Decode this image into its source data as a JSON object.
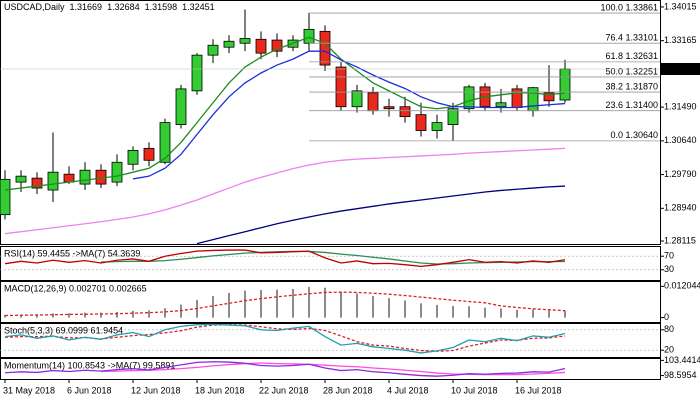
{
  "chart_data": [
    {
      "type": "candlestick",
      "title": "USDCAD,Daily",
      "categories": [
        "31 May 2018",
        null,
        null,
        null,
        "6 Jun 2018",
        null,
        null,
        null,
        "12 Jun 2018",
        null,
        null,
        null,
        "18 Jun 2018",
        null,
        null,
        null,
        "22 Jun 2018",
        null,
        null,
        null,
        "28 Jun 2018",
        null,
        null,
        null,
        "4 Jul 2018",
        null,
        null,
        null,
        "10 Jul 2018",
        null,
        null,
        null,
        "16 Jul 2018",
        null,
        null,
        null
      ],
      "open": [
        1.2878,
        1.296,
        1.297,
        1.294,
        1.298,
        1.2955,
        1.299,
        1.296,
        1.3005,
        1.3045,
        1.301,
        1.3105,
        1.319,
        1.328,
        1.33,
        1.331,
        1.332,
        1.3318,
        1.33,
        1.331,
        1.334,
        1.325,
        1.315,
        1.3185,
        1.315,
        1.315,
        1.313,
        1.309,
        1.3105,
        1.3145,
        1.32,
        1.315,
        1.3195,
        1.314,
        1.3185,
        1.31669
      ],
      "high": [
        1.299,
        1.299,
        1.2985,
        1.3085,
        1.3,
        1.301,
        1.3005,
        1.303,
        1.305,
        1.306,
        1.312,
        1.3205,
        1.3285,
        1.332,
        1.333,
        1.3395,
        1.334,
        1.3335,
        1.333,
        1.33861,
        1.3355,
        1.3262,
        1.3205,
        1.32,
        1.317,
        1.3175,
        1.316,
        1.313,
        1.316,
        1.3205,
        1.321,
        1.3195,
        1.3205,
        1.32,
        1.3255,
        1.32684
      ],
      "low": [
        1.2866,
        1.2935,
        1.293,
        1.291,
        1.2955,
        1.294,
        1.2945,
        1.295,
        1.299,
        1.3,
        1.3005,
        1.3095,
        1.318,
        1.326,
        1.3285,
        1.329,
        1.327,
        1.3275,
        1.329,
        1.329,
        1.324,
        1.314,
        1.3135,
        1.313,
        1.3125,
        1.311,
        1.3075,
        1.307,
        1.3064,
        1.3135,
        1.314,
        1.3135,
        1.314,
        1.3125,
        1.315,
        1.31598
      ],
      "close": [
        1.2967,
        1.2975,
        1.2945,
        1.2985,
        1.296,
        1.299,
        1.2955,
        1.301,
        1.304,
        1.3015,
        1.311,
        1.3195,
        1.328,
        1.3305,
        1.3315,
        1.3322,
        1.3285,
        1.329,
        1.3318,
        1.3345,
        1.3255,
        1.315,
        1.319,
        1.314,
        1.3145,
        1.3125,
        1.309,
        1.311,
        1.3145,
        1.32,
        1.315,
        1.316,
        1.3148,
        1.3198,
        1.3165,
        1.32451
      ],
      "up_color": "#33cc33",
      "down_color": "#e8291c",
      "series": [
        {
          "color": "#1e8c1e",
          "values": [
            1.294,
            1.2945,
            1.295,
            1.2955,
            1.296,
            1.2965,
            1.297,
            1.2975,
            1.2985,
            1.2995,
            1.302,
            1.306,
            1.311,
            1.316,
            1.321,
            1.325,
            1.3275,
            1.3295,
            1.331,
            1.3325,
            1.331,
            1.327,
            1.324,
            1.321,
            1.319,
            1.317,
            1.315,
            1.3145,
            1.315,
            1.3165,
            1.3175,
            1.318,
            1.3185,
            1.3185,
            1.318,
            1.3185
          ]
        },
        {
          "color": "#1a2ee0",
          "values": [
            null,
            null,
            null,
            null,
            null,
            null,
            null,
            null,
            1.2968,
            1.2975,
            1.2995,
            1.303,
            1.308,
            1.313,
            1.3175,
            1.321,
            1.3235,
            1.3255,
            1.327,
            1.329,
            1.329,
            1.3268,
            1.325,
            1.323,
            1.3212,
            1.3196,
            1.3175,
            1.316,
            1.315,
            1.315,
            1.3148,
            1.3148,
            1.3148,
            1.3152,
            1.3155,
            1.3158
          ]
        },
        {
          "color": "#ee82ee",
          "values": [
            1.283,
            1.2835,
            1.284,
            1.2845,
            1.285,
            1.2855,
            1.286,
            1.2866,
            1.2872,
            1.288,
            1.289,
            1.2902,
            1.2915,
            1.293,
            1.2945,
            1.296,
            1.2972,
            1.2983,
            1.2994,
            1.3003,
            1.301,
            1.3015,
            1.3018,
            1.302,
            1.3022,
            1.3024,
            1.3026,
            1.3028,
            1.303,
            1.3033,
            1.3035,
            1.3037,
            1.3039,
            1.3041,
            1.3043,
            1.3045
          ]
        },
        {
          "color": "#000080",
          "values": [
            null,
            null,
            null,
            null,
            null,
            null,
            null,
            null,
            null,
            null,
            null,
            null,
            1.2805,
            1.2815,
            1.2825,
            1.2835,
            1.2845,
            1.2855,
            1.2864,
            1.2872,
            1.288,
            1.2887,
            1.2893,
            1.2899,
            1.2905,
            1.291,
            1.2915,
            1.292,
            1.2925,
            1.293,
            1.2935,
            1.2939,
            1.2942,
            1.2945,
            1.2948,
            1.295
          ]
        }
      ],
      "levels_start": 19,
      "levels": [
        {
          "value": 1.33861,
          "label": "100.0 1.33861"
        },
        {
          "value": 1.33101,
          "label": "76.4 1.33101"
        },
        {
          "value": 1.32631,
          "label": "61.8 1.32631"
        },
        {
          "value": 1.32251,
          "label": "50.0 1.32251"
        },
        {
          "value": 1.3187,
          "label": "38.2 1.31870"
        },
        {
          "value": 1.314,
          "label": "23.6 1.31400"
        },
        {
          "value": 1.3064,
          "label": "0.0 1.30640"
        }
      ],
      "ylim": [
        1.2804,
        1.3419
      ],
      "yticks": [
        1.34015,
        1.33165,
        {
          "value": 1.3149,
          "label": "1.31490"
        },
        {
          "value": 1.3064,
          "label": "1.30640"
        },
        {
          "value": 1.2979,
          "label": "1.29790"
        },
        {
          "value": 1.2894,
          "label": "1.28940"
        },
        1.28115
      ]
    },
    {
      "type": "line",
      "title": "RSI(14) 59.4455 ->MA(7) 54.3639",
      "ylim": [
        0,
        100
      ],
      "yticks": [
        30,
        70
      ],
      "grid": true,
      "series": [
        {
          "color": "#2e8b57",
          "values": [
            null,
            null,
            null,
            null,
            null,
            null,
            53,
            54,
            55,
            55,
            57,
            61,
            66,
            71,
            75,
            79,
            81,
            83,
            84,
            84,
            81,
            76,
            72,
            67,
            62,
            56,
            50,
            47,
            48,
            50,
            51,
            52,
            53,
            54,
            54,
            54.3639
          ]
        },
        {
          "color": "#c00000",
          "values": [
            48,
            55,
            50,
            58,
            52,
            57,
            50,
            58,
            62,
            55,
            70,
            78,
            85,
            87,
            88,
            88,
            80,
            81,
            83,
            85,
            65,
            50,
            56,
            48,
            49,
            45,
            40,
            45,
            52,
            60,
            52,
            54,
            50,
            56,
            52,
            59.4455
          ]
        }
      ]
    },
    {
      "type": "macd",
      "title": "MACD(12,26,9) 0.002701 0.002665",
      "ylim": [
        -0.0017,
        0.0141
      ],
      "yticks": [
        0.012044,
        0
      ],
      "color": "#8c8c8c",
      "values": [
        0.001,
        0.0012,
        0.0013,
        0.0016,
        0.0017,
        0.0019,
        0.0019,
        0.0022,
        0.0026,
        0.0028,
        0.0036,
        0.005,
        0.0068,
        0.0083,
        0.0095,
        0.0104,
        0.0106,
        0.0108,
        0.011,
        0.0118,
        0.0115,
        0.01,
        0.0093,
        0.0083,
        0.0075,
        0.0066,
        0.0055,
        0.0049,
        0.0045,
        0.0044,
        0.0038,
        0.0035,
        0.003,
        0.0031,
        0.0028,
        0.002701
      ],
      "series": [
        {
          "color": "#e02020",
          "dash": true,
          "values": [
            0.0008,
            0.0009,
            0.001,
            0.0011,
            0.0012,
            0.0013,
            0.0014,
            0.0015,
            0.0017,
            0.0019,
            0.0022,
            0.0027,
            0.0035,
            0.0045,
            0.0055,
            0.0065,
            0.0073,
            0.008,
            0.0086,
            0.0092,
            0.0097,
            0.0098,
            0.0097,
            0.0094,
            0.009,
            0.0085,
            0.0079,
            0.0073,
            0.0067,
            0.0062,
            0.0057,
            0.0045,
            0.0039,
            0.0034,
            0.003,
            0.002665
          ]
        }
      ]
    },
    {
      "type": "line",
      "title": "Stoch(5,3,3) 69.0999 61.9454",
      "ylim": [
        0,
        100
      ],
      "yticks": [
        20,
        80
      ],
      "grid": true,
      "series": [
        {
          "color": "#e02020",
          "dash": true,
          "values": [
            58,
            60,
            60,
            61,
            56,
            57,
            53,
            58,
            63,
            66,
            71,
            77,
            88,
            94,
            95,
            94,
            89,
            83,
            81,
            84,
            78,
            62,
            45,
            35,
            32,
            25,
            19,
            17,
            19,
            32,
            41,
            50,
            49,
            55,
            56,
            61.9454
          ]
        },
        {
          "color": "#1f9fb0",
          "values": [
            60,
            65,
            55,
            62,
            50,
            58,
            52,
            65,
            72,
            60,
            80,
            90,
            95,
            96,
            94,
            92,
            80,
            78,
            85,
            90,
            60,
            35,
            40,
            30,
            25,
            20,
            12,
            18,
            28,
            50,
            45,
            55,
            48,
            62,
            58,
            69.0999
          ]
        }
      ]
    },
    {
      "type": "line",
      "title": "Momentum(14) 100.8543 ->MA(7) 99.5891",
      "ylim": [
        97.5,
        104.2
      ],
      "yticks": [
        98.5954,
        103.4414
      ],
      "series": [
        {
          "color": "#ff4fd8",
          "values": [
            null,
            null,
            null,
            null,
            null,
            null,
            99.9,
            100.0,
            100.2,
            100.3,
            100.5,
            100.8,
            101.2,
            101.7,
            102.1,
            102.4,
            102.6,
            102.4,
            102.3,
            102.2,
            101.9,
            101.6,
            101.4,
            101.0,
            100.7,
            100.3,
            99.9,
            99.4,
            99.1,
            99.0,
            98.9,
            98.9,
            98.9,
            99.1,
            99.3,
            99.5891
          ]
        },
        {
          "color": "#8a2be2",
          "values": [
            99.5,
            99.8,
            99.6,
            100.2,
            99.9,
            100.3,
            100.0,
            100.5,
            100.8,
            100.4,
            101.2,
            102.0,
            102.8,
            103.0,
            102.9,
            102.5,
            101.8,
            101.6,
            101.8,
            102.2,
            101.0,
            100.2,
            100.5,
            99.8,
            99.5,
            99.0,
            98.6,
            98.4,
            98.7,
            99.2,
            99.0,
            99.3,
            99.4,
            99.8,
            99.7,
            100.8543
          ]
        }
      ]
    }
  ]
}
